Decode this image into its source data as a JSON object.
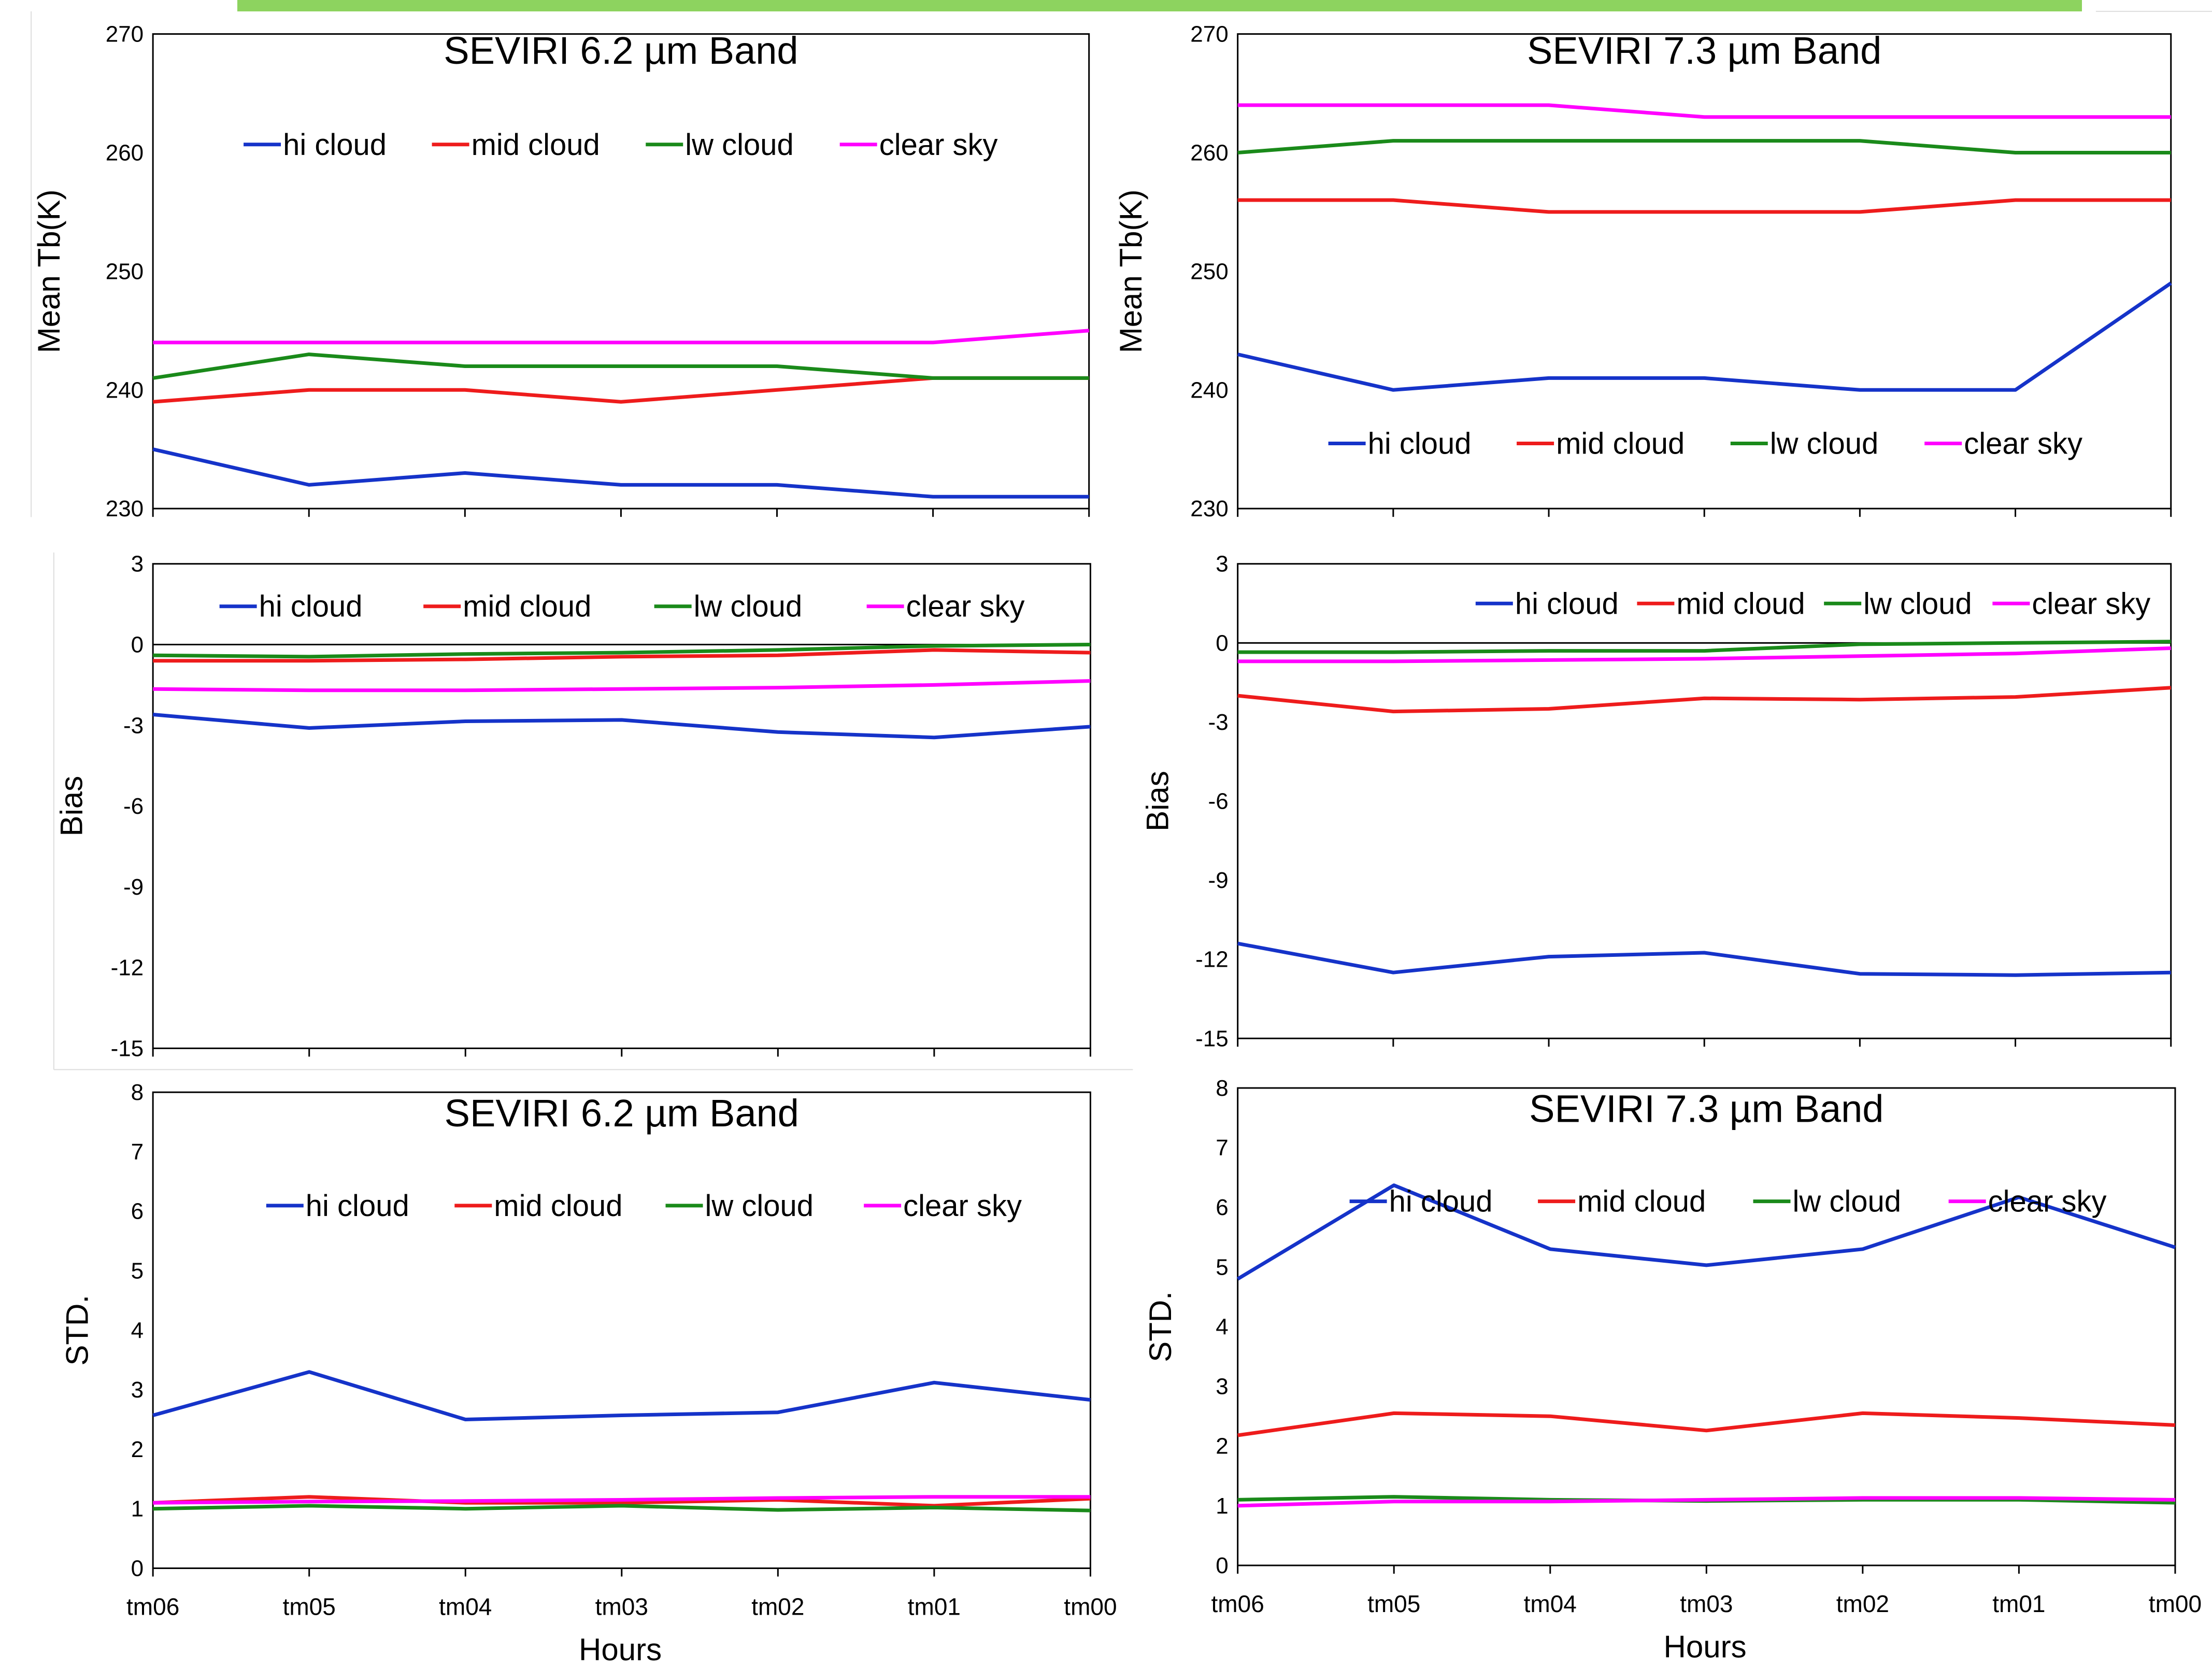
{
  "colors": {
    "hi": "#1533c9",
    "mid": "#ee1c1c",
    "lw": "#1a8a1a",
    "clear": "#ff00ff",
    "banner": "#8dd35f"
  },
  "chart_data": [
    {
      "type": "line",
      "title": "SEVIRI 6.2 µm Band",
      "ylabel": "Mean Tb(K)",
      "xlabel": "",
      "categories": [
        "tm06",
        "tm05",
        "tm04",
        "tm03",
        "tm02",
        "tm01",
        "tm00"
      ],
      "ylim": [
        230,
        270
      ],
      "yticks": [
        230,
        240,
        250,
        260,
        270
      ],
      "legend": "top",
      "series": [
        {
          "name": "hi cloud",
          "key": "hi",
          "values": [
            235,
            232,
            233,
            232,
            232,
            231,
            231
          ]
        },
        {
          "name": "mid cloud",
          "key": "mid",
          "values": [
            239,
            240,
            240,
            239,
            240,
            241,
            241
          ]
        },
        {
          "name": "lw cloud",
          "key": "lw",
          "values": [
            241,
            243,
            242,
            242,
            242,
            241,
            241
          ]
        },
        {
          "name": "clear sky",
          "key": "clear",
          "values": [
            244,
            244,
            244,
            244,
            244,
            244,
            245
          ]
        }
      ]
    },
    {
      "type": "line",
      "title": "SEVIRI 7.3 µm Band",
      "ylabel": "Mean Tb(K)",
      "xlabel": "",
      "categories": [
        "tm06",
        "tm05",
        "tm04",
        "tm03",
        "tm02",
        "tm01",
        "tm00"
      ],
      "ylim": [
        230,
        270
      ],
      "yticks": [
        230,
        240,
        250,
        260,
        270
      ],
      "legend": "bottom",
      "series": [
        {
          "name": "hi cloud",
          "key": "hi",
          "values": [
            243,
            240,
            241,
            241,
            240,
            240,
            249
          ]
        },
        {
          "name": "mid cloud",
          "key": "mid",
          "values": [
            256,
            256,
            255,
            255,
            255,
            256,
            256
          ]
        },
        {
          "name": "lw cloud",
          "key": "lw",
          "values": [
            260,
            261,
            261,
            261,
            261,
            260,
            260
          ]
        },
        {
          "name": "clear sky",
          "key": "clear",
          "values": [
            264,
            264,
            264,
            263,
            263,
            263,
            263
          ]
        }
      ]
    },
    {
      "type": "line",
      "title": "",
      "ylabel": "Bias",
      "xlabel": "",
      "categories": [
        "tm06",
        "tm05",
        "tm04",
        "tm03",
        "tm02",
        "tm01",
        "tm00"
      ],
      "ylim": [
        -15,
        3
      ],
      "yticks": [
        -15,
        -12,
        -9,
        -6,
        -3,
        0,
        3
      ],
      "legend": "top",
      "series": [
        {
          "name": "hi cloud",
          "key": "hi",
          "values": [
            -2.6,
            -3.1,
            -2.85,
            -2.8,
            -3.25,
            -3.45,
            -3.05
          ]
        },
        {
          "name": "mid cloud",
          "key": "mid",
          "values": [
            -0.6,
            -0.6,
            -0.55,
            -0.45,
            -0.4,
            -0.2,
            -0.3
          ]
        },
        {
          "name": "lw cloud",
          "key": "lw",
          "values": [
            -0.4,
            -0.45,
            -0.35,
            -0.3,
            -0.2,
            -0.05,
            0.0
          ]
        },
        {
          "name": "clear sky",
          "key": "clear",
          "values": [
            -1.65,
            -1.7,
            -1.7,
            -1.65,
            -1.6,
            -1.5,
            -1.35
          ]
        }
      ]
    },
    {
      "type": "line",
      "title": "",
      "ylabel": "Bias",
      "xlabel": "",
      "categories": [
        "tm06",
        "tm05",
        "tm04",
        "tm03",
        "tm02",
        "tm01",
        "tm00"
      ],
      "ylim": [
        -15,
        3
      ],
      "yticks": [
        -15,
        -12,
        -9,
        -6,
        -3,
        0,
        3
      ],
      "legend": "top-right",
      "series": [
        {
          "name": "hi cloud",
          "key": "hi",
          "values": [
            -11.4,
            -12.5,
            -11.9,
            -11.75,
            -12.55,
            -12.6,
            -12.5
          ]
        },
        {
          "name": "mid cloud",
          "key": "mid",
          "values": [
            -2.0,
            -2.6,
            -2.5,
            -2.1,
            -2.15,
            -2.05,
            -1.7
          ]
        },
        {
          "name": "lw cloud",
          "key": "lw",
          "values": [
            -0.35,
            -0.35,
            -0.3,
            -0.3,
            -0.05,
            0.0,
            0.05
          ]
        },
        {
          "name": "clear sky",
          "key": "clear",
          "values": [
            -0.7,
            -0.7,
            -0.65,
            -0.6,
            -0.5,
            -0.4,
            -0.2
          ]
        }
      ]
    },
    {
      "type": "line",
      "title": "SEVIRI 6.2 µm Band",
      "ylabel": "STD.",
      "xlabel": "Hours",
      "categories": [
        "tm06",
        "tm05",
        "tm04",
        "tm03",
        "tm02",
        "tm01",
        "tm00"
      ],
      "ylim": [
        0,
        8
      ],
      "yticks": [
        0,
        1,
        2,
        3,
        4,
        5,
        6,
        7,
        8
      ],
      "legend": "top",
      "series": [
        {
          "name": "hi cloud",
          "key": "hi",
          "values": [
            2.57,
            3.3,
            2.5,
            2.57,
            2.62,
            3.12,
            2.83
          ]
        },
        {
          "name": "mid cloud",
          "key": "mid",
          "values": [
            1.1,
            1.2,
            1.1,
            1.1,
            1.15,
            1.05,
            1.17
          ]
        },
        {
          "name": "lw cloud",
          "key": "lw",
          "values": [
            1.0,
            1.05,
            1.0,
            1.05,
            0.98,
            1.02,
            0.97
          ]
        },
        {
          "name": "clear sky",
          "key": "clear",
          "values": [
            1.1,
            1.12,
            1.13,
            1.15,
            1.18,
            1.2,
            1.2
          ]
        }
      ]
    },
    {
      "type": "line",
      "title": "SEVIRI 7.3 µm Band",
      "ylabel": "STD.",
      "xlabel": "Hours",
      "categories": [
        "tm06",
        "tm05",
        "tm04",
        "tm03",
        "tm02",
        "tm01",
        "tm00"
      ],
      "ylim": [
        0,
        8
      ],
      "yticks": [
        0,
        1,
        2,
        3,
        4,
        5,
        6,
        7,
        8
      ],
      "legend": "top",
      "series": [
        {
          "name": "hi cloud",
          "key": "hi",
          "values": [
            4.8,
            6.37,
            5.3,
            5.03,
            5.3,
            6.17,
            5.33
          ]
        },
        {
          "name": "mid cloud",
          "key": "mid",
          "values": [
            2.18,
            2.55,
            2.5,
            2.26,
            2.55,
            2.47,
            2.35
          ]
        },
        {
          "name": "lw cloud",
          "key": "lw",
          "values": [
            1.1,
            1.15,
            1.1,
            1.08,
            1.1,
            1.1,
            1.05
          ]
        },
        {
          "name": "clear sky",
          "key": "clear",
          "values": [
            1.0,
            1.07,
            1.07,
            1.1,
            1.13,
            1.13,
            1.1
          ]
        }
      ]
    }
  ]
}
